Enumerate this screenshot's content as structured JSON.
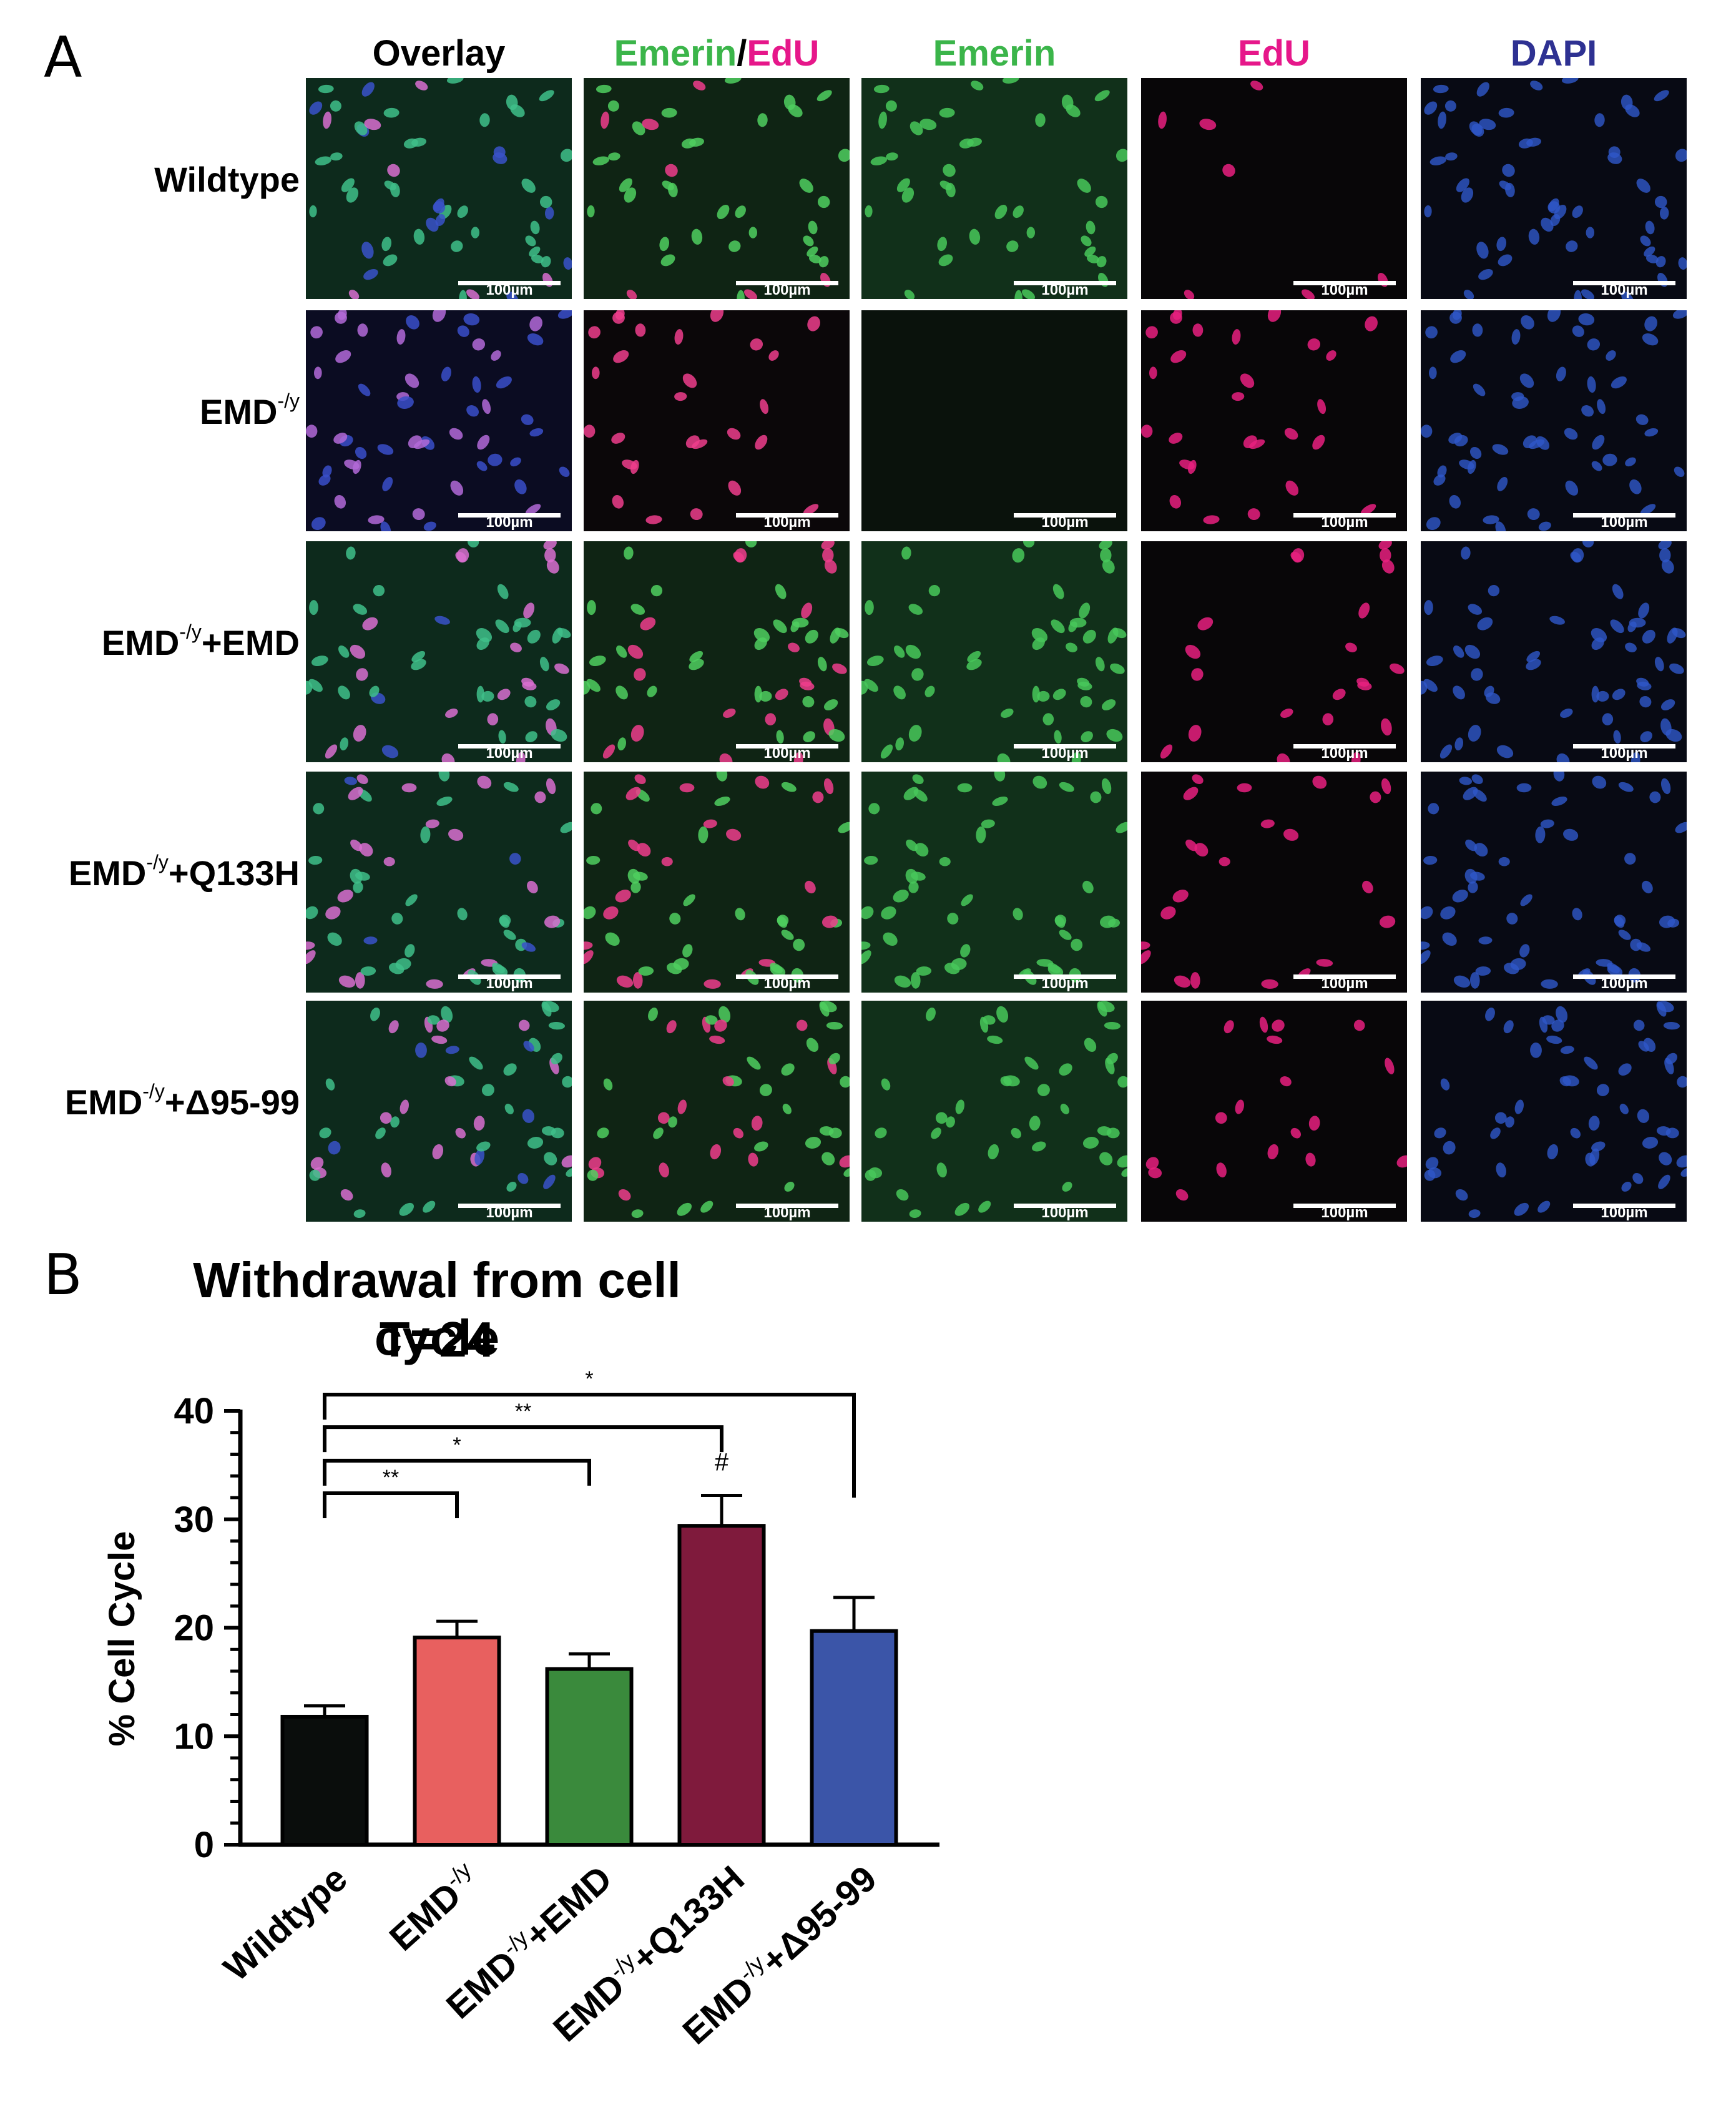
{
  "panel_a": {
    "letter": "A",
    "columns": [
      {
        "label": "Overlay",
        "color": "#000000"
      },
      {
        "label": "Emerin/EdU",
        "part1": "Emerin",
        "sep": "/",
        "part2": "EdU",
        "color1": "#3bb54a",
        "color2": "#e6178a"
      },
      {
        "label": "Emerin",
        "color": "#3bb54a"
      },
      {
        "label": "EdU",
        "color": "#e6178a"
      },
      {
        "label": "DAPI",
        "color": "#2e3192"
      }
    ],
    "rows": [
      {
        "base": "Wildtype",
        "sup": "",
        "suffix": ""
      },
      {
        "base": "EMD",
        "sup": "-/y",
        "suffix": ""
      },
      {
        "base": "EMD",
        "sup": "-/y",
        "suffix": "+EMD"
      },
      {
        "base": "EMD",
        "sup": "-/y",
        "suffix": "+Q133H"
      },
      {
        "base": "EMD",
        "sup": "-/y",
        "suffix": "+Δ95-99"
      }
    ],
    "scale_bar_label": "100µm"
  },
  "panel_b": {
    "letter": "B"
  },
  "chart_data": {
    "type": "bar",
    "title": "Withdrawal from cell cycle",
    "subtitle": "T=24",
    "ylabel": "% Cell Cycle",
    "xlabel": "",
    "ylim": [
      0,
      40
    ],
    "yticks": [
      0,
      10,
      20,
      30,
      40
    ],
    "categories": [
      {
        "base": "Wildtype",
        "sup": "",
        "suffix": ""
      },
      {
        "base": "EMD",
        "sup": "-/y",
        "suffix": ""
      },
      {
        "base": "EMD",
        "sup": "-/y",
        "suffix": "+EMD"
      },
      {
        "base": "EMD",
        "sup": "-/y",
        "suffix": "+Q133H"
      },
      {
        "base": "EMD",
        "sup": "-/y",
        "suffix": "+Δ95-99"
      }
    ],
    "values": [
      11.8,
      19.1,
      16.2,
      29.4,
      19.7
    ],
    "errors": [
      1.0,
      1.5,
      1.4,
      2.8,
      3.1
    ],
    "colors": [
      "#0a0d0c",
      "#e8605f",
      "#3a8a3c",
      "#7f1a3c",
      "#3b55a8"
    ],
    "significance": [
      {
        "from": 0,
        "to": 1,
        "label": "**"
      },
      {
        "from": 0,
        "to": 2,
        "label": "*"
      },
      {
        "from": 0,
        "to": 3,
        "label": "**"
      },
      {
        "from": 0,
        "to": 4,
        "label": "*"
      }
    ],
    "bar_annotations": [
      {
        "index": 3,
        "label": "#"
      }
    ],
    "grid": false,
    "legend": "none"
  }
}
